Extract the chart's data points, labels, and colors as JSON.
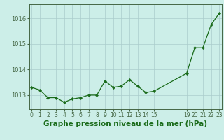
{
  "x": [
    0,
    1,
    2,
    3,
    4,
    5,
    6,
    7,
    8,
    9,
    10,
    11,
    12,
    13,
    14,
    15,
    19,
    20,
    21,
    22,
    23
  ],
  "y": [
    1013.3,
    1013.2,
    1012.9,
    1012.9,
    1012.72,
    1012.85,
    1012.9,
    1013.0,
    1013.0,
    1013.55,
    1013.3,
    1013.35,
    1013.6,
    1013.35,
    1013.1,
    1013.15,
    1013.85,
    1014.85,
    1014.85,
    1015.75,
    1016.2
  ],
  "xticks": [
    0,
    1,
    2,
    3,
    4,
    5,
    6,
    7,
    8,
    9,
    10,
    11,
    12,
    13,
    14,
    15,
    19,
    20,
    21,
    22,
    23
  ],
  "xtick_labels": [
    "0",
    "1",
    "2",
    "3",
    "4",
    "5",
    "6",
    "7",
    "8",
    "9",
    "10",
    "11",
    "12",
    "13",
    "14",
    "15",
    "19",
    "20",
    "21",
    "22",
    "23"
  ],
  "yticks": [
    1013,
    1014,
    1015,
    1016
  ],
  "ylim": [
    1012.45,
    1016.55
  ],
  "xlim": [
    -0.3,
    23.3
  ],
  "xlabel": "Graphe pression niveau de la mer (hPa)",
  "line_color": "#1a6b1a",
  "marker_color": "#1a6b1a",
  "bg_color": "#cceee8",
  "grid_color": "#aacccc",
  "axis_color": "#446644",
  "label_color": "#1a6b1a",
  "xlabel_fontsize": 7.5,
  "tick_fontsize": 5.5,
  "ytick_fontsize": 6.0
}
